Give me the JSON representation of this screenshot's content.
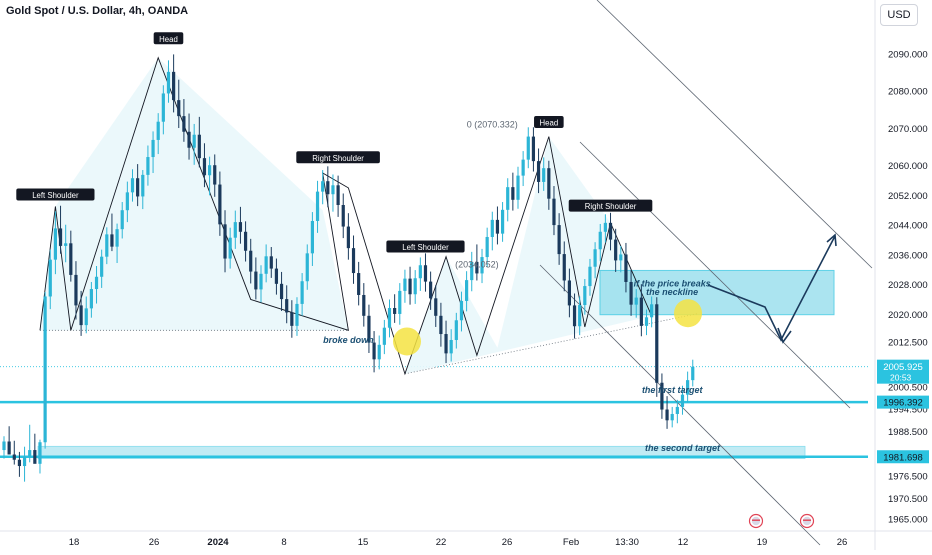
{
  "header": {
    "symbol_title": "Gold Spot / U.S. Dollar, 4h, OANDA",
    "currency_button": "USD"
  },
  "colors": {
    "bull": "#2cb5d6",
    "bear": "#1b3a5c",
    "band": "#2bc3e0",
    "zone_fill": "#8fdcec",
    "trend_line": "#131722",
    "highlight": "#f5e342",
    "annotation_text": "#1b4f72",
    "price_tag_bg": "#2bc3e0",
    "current_tag_bg": "#2bc3e0"
  },
  "chart_data": {
    "type": "candlestick",
    "y_axis": {
      "ticks": [
        2090,
        2080,
        2070,
        2060,
        2052,
        2044,
        2036,
        2028,
        2020,
        2012.5,
        2000.5,
        1994.5,
        1988.5,
        1976.5,
        1970.5,
        1965
      ],
      "tick_labels": [
        "2090.000",
        "2080.000",
        "2070.000",
        "2060.000",
        "2052.000",
        "2044.000",
        "2036.000",
        "2028.000",
        "2020.000",
        "2012.500",
        "2000.500",
        "1994.500",
        "1988.500",
        "1976.500",
        "1970.500",
        "1965.000"
      ],
      "range": [
        1962,
        2097
      ]
    },
    "x_axis": {
      "tick_labels": [
        "18",
        "26",
        "2024",
        "8",
        "15",
        "22",
        "26",
        "Feb",
        "13:30",
        "12",
        "19",
        "26"
      ],
      "bold_labels": [
        "2024"
      ]
    },
    "price_tags": [
      {
        "price": 2005.925,
        "label": "2005.925",
        "sublabel": "20:53",
        "kind": "current"
      },
      {
        "price": 1996.392,
        "label": "1996.392",
        "kind": "level"
      },
      {
        "price": 1981.698,
        "label": "1981.698",
        "kind": "level"
      }
    ],
    "horizontal_levels": [
      {
        "price": 1996.392,
        "style": "band"
      },
      {
        "price": 1981.698,
        "style": "band"
      }
    ],
    "pattern_labels": [
      {
        "text": "Left Shoulder",
        "bar": 10,
        "price": 2049
      },
      {
        "text": "Head",
        "bar": 32,
        "price": 2091
      },
      {
        "text": "Right Shoulder",
        "bar": 65,
        "price": 2059
      },
      {
        "text": "Left Shoulder",
        "bar": 82,
        "price": 2035
      },
      {
        "text": "Head",
        "bar": 106,
        "price": 2068.5
      },
      {
        "text": "Right Shoulder",
        "bar": 118,
        "price": 2046
      }
    ],
    "annotations": [
      {
        "text": "broke down",
        "bar": 67,
        "price": 2012.3
      },
      {
        "text": "if the price breaks",
        "bar": 130,
        "price": 2027.5
      },
      {
        "text": "the neckline",
        "bar": 130,
        "price": 2025.2
      },
      {
        "text": "the first target",
        "bar": 130,
        "price": 1998.8
      },
      {
        "text": "the second target",
        "bar": 132,
        "price": 1983.3
      },
      {
        "text": "(2034.052)",
        "bar": 92,
        "price": 2032.6
      },
      {
        "text": "0 (2070.332)",
        "bar": 95,
        "price": 2070.3
      }
    ],
    "candles": [
      {
        "o": 1983.5,
        "h": 1987.2,
        "l": 1981.2,
        "c": 1985.8
      },
      {
        "o": 1985.8,
        "h": 1989.9,
        "l": 1982.7,
        "c": 1982.3
      },
      {
        "o": 1982.3,
        "h": 1986.0,
        "l": 1979.6,
        "c": 1980.9
      },
      {
        "o": 1980.9,
        "h": 1983.0,
        "l": 1976.3,
        "c": 1979.2
      },
      {
        "o": 1979.2,
        "h": 1984.4,
        "l": 1975.0,
        "c": 1981.7
      },
      {
        "o": 1981.7,
        "h": 1990.3,
        "l": 1980.2,
        "c": 1983.5
      },
      {
        "o": 1983.5,
        "h": 1987.9,
        "l": 1980.4,
        "c": 1979.8
      },
      {
        "o": 1979.8,
        "h": 1986.3,
        "l": 1977.2,
        "c": 1985.6
      },
      {
        "o": 1985.6,
        "h": 2026.0,
        "l": 1983.9,
        "c": 2024.8
      },
      {
        "o": 2024.8,
        "h": 2037.4,
        "l": 2021.4,
        "c": 2034.7
      },
      {
        "o": 2034.7,
        "h": 2047.7,
        "l": 2030.8,
        "c": 2043.1
      },
      {
        "o": 2043.1,
        "h": 2049.2,
        "l": 2036.3,
        "c": 2038.4
      },
      {
        "o": 2038.4,
        "h": 2044.1,
        "l": 2034.0,
        "c": 2039.1
      },
      {
        "o": 2039.1,
        "h": 2042.5,
        "l": 2028.8,
        "c": 2030.6
      },
      {
        "o": 2030.6,
        "h": 2034.3,
        "l": 2018.6,
        "c": 2022.4
      },
      {
        "o": 2022.4,
        "h": 2026.3,
        "l": 2014.2,
        "c": 2017.1
      },
      {
        "o": 2017.1,
        "h": 2024.8,
        "l": 2014.9,
        "c": 2021.6
      },
      {
        "o": 2021.6,
        "h": 2028.7,
        "l": 2019.1,
        "c": 2026.8
      },
      {
        "o": 2026.8,
        "h": 2033.0,
        "l": 2022.9,
        "c": 2030.1
      },
      {
        "o": 2030.1,
        "h": 2037.4,
        "l": 2027.1,
        "c": 2035.5
      },
      {
        "o": 2035.5,
        "h": 2043.4,
        "l": 2033.5,
        "c": 2041.5
      },
      {
        "o": 2041.5,
        "h": 2047.1,
        "l": 2037.0,
        "c": 2038.2
      },
      {
        "o": 2038.2,
        "h": 2044.4,
        "l": 2033.8,
        "c": 2042.9
      },
      {
        "o": 2042.9,
        "h": 2050.2,
        "l": 2040.4,
        "c": 2048.0
      },
      {
        "o": 2048.0,
        "h": 2055.7,
        "l": 2044.8,
        "c": 2052.8
      },
      {
        "o": 2052.8,
        "h": 2059.0,
        "l": 2050.3,
        "c": 2056.6
      },
      {
        "o": 2056.6,
        "h": 2060.4,
        "l": 2049.1,
        "c": 2051.7
      },
      {
        "o": 2051.7,
        "h": 2058.8,
        "l": 2048.3,
        "c": 2057.5
      },
      {
        "o": 2057.5,
        "h": 2065.4,
        "l": 2054.6,
        "c": 2062.3
      },
      {
        "o": 2062.3,
        "h": 2069.2,
        "l": 2058.0,
        "c": 2066.9
      },
      {
        "o": 2066.9,
        "h": 2074.1,
        "l": 2063.1,
        "c": 2071.8
      },
      {
        "o": 2071.8,
        "h": 2081.6,
        "l": 2068.4,
        "c": 2079.4
      },
      {
        "o": 2079.4,
        "h": 2088.3,
        "l": 2076.9,
        "c": 2085.2
      },
      {
        "o": 2085.2,
        "h": 2089.9,
        "l": 2074.3,
        "c": 2077.6
      },
      {
        "o": 2077.6,
        "h": 2083.1,
        "l": 2070.1,
        "c": 2073.3
      },
      {
        "o": 2073.3,
        "h": 2077.9,
        "l": 2066.4,
        "c": 2069.1
      },
      {
        "o": 2069.1,
        "h": 2074.0,
        "l": 2061.6,
        "c": 2064.8
      },
      {
        "o": 2064.8,
        "h": 2071.2,
        "l": 2060.2,
        "c": 2068.3
      },
      {
        "o": 2068.3,
        "h": 2073.1,
        "l": 2059.5,
        "c": 2062.0
      },
      {
        "o": 2062.0,
        "h": 2066.0,
        "l": 2054.2,
        "c": 2057.4
      },
      {
        "o": 2057.4,
        "h": 2062.4,
        "l": 2052.0,
        "c": 2060.1
      },
      {
        "o": 2060.1,
        "h": 2063.0,
        "l": 2051.6,
        "c": 2054.9
      },
      {
        "o": 2054.9,
        "h": 2058.4,
        "l": 2041.1,
        "c": 2044.2
      },
      {
        "o": 2044.2,
        "h": 2048.0,
        "l": 2031.3,
        "c": 2035.0
      },
      {
        "o": 2035.0,
        "h": 2043.3,
        "l": 2032.3,
        "c": 2040.6
      },
      {
        "o": 2040.6,
        "h": 2047.9,
        "l": 2037.6,
        "c": 2044.8
      },
      {
        "o": 2044.8,
        "h": 2048.9,
        "l": 2039.0,
        "c": 2042.2
      },
      {
        "o": 2042.2,
        "h": 2045.0,
        "l": 2034.2,
        "c": 2037.1
      },
      {
        "o": 2037.1,
        "h": 2040.3,
        "l": 2028.3,
        "c": 2031.5
      },
      {
        "o": 2031.5,
        "h": 2035.3,
        "l": 2024.0,
        "c": 2026.7
      },
      {
        "o": 2026.7,
        "h": 2033.2,
        "l": 2023.2,
        "c": 2030.9
      },
      {
        "o": 2030.9,
        "h": 2038.8,
        "l": 2028.6,
        "c": 2035.6
      },
      {
        "o": 2035.6,
        "h": 2038.1,
        "l": 2029.8,
        "c": 2032.3
      },
      {
        "o": 2032.3,
        "h": 2035.0,
        "l": 2025.3,
        "c": 2028.2
      },
      {
        "o": 2028.2,
        "h": 2031.4,
        "l": 2020.9,
        "c": 2024.1
      },
      {
        "o": 2024.1,
        "h": 2027.8,
        "l": 2017.6,
        "c": 2020.5
      },
      {
        "o": 2020.5,
        "h": 2023.8,
        "l": 2013.7,
        "c": 2016.9
      },
      {
        "o": 2016.9,
        "h": 2024.6,
        "l": 2014.2,
        "c": 2022.8
      },
      {
        "o": 2022.8,
        "h": 2031.1,
        "l": 2019.6,
        "c": 2028.9
      },
      {
        "o": 2028.9,
        "h": 2038.8,
        "l": 2026.6,
        "c": 2036.4
      },
      {
        "o": 2036.4,
        "h": 2047.5,
        "l": 2033.0,
        "c": 2045.1
      },
      {
        "o": 2045.1,
        "h": 2055.9,
        "l": 2041.9,
        "c": 2053.0
      },
      {
        "o": 2053.0,
        "h": 2058.8,
        "l": 2049.6,
        "c": 2055.8
      },
      {
        "o": 2055.8,
        "h": 2059.8,
        "l": 2048.8,
        "c": 2052.3
      },
      {
        "o": 2052.3,
        "h": 2057.6,
        "l": 2047.6,
        "c": 2054.7
      },
      {
        "o": 2054.7,
        "h": 2057.3,
        "l": 2046.2,
        "c": 2049.4
      },
      {
        "o": 2049.4,
        "h": 2052.5,
        "l": 2040.5,
        "c": 2043.6
      },
      {
        "o": 2043.6,
        "h": 2047.2,
        "l": 2034.7,
        "c": 2037.8
      },
      {
        "o": 2037.8,
        "h": 2041.2,
        "l": 2028.2,
        "c": 2031.1
      },
      {
        "o": 2031.1,
        "h": 2034.1,
        "l": 2022.4,
        "c": 2025.2
      },
      {
        "o": 2025.2,
        "h": 2028.4,
        "l": 2016.7,
        "c": 2019.6
      },
      {
        "o": 2019.6,
        "h": 2022.6,
        "l": 2009.6,
        "c": 2012.4
      },
      {
        "o": 2012.4,
        "h": 2015.5,
        "l": 2004.4,
        "c": 2007.9
      },
      {
        "o": 2007.9,
        "h": 2014.3,
        "l": 2005.2,
        "c": 2011.8
      },
      {
        "o": 2011.8,
        "h": 2018.5,
        "l": 2009.3,
        "c": 2016.4
      },
      {
        "o": 2016.4,
        "h": 2024.0,
        "l": 2013.8,
        "c": 2021.7
      },
      {
        "o": 2021.7,
        "h": 2025.4,
        "l": 2017.7,
        "c": 2020.1
      },
      {
        "o": 2020.1,
        "h": 2028.4,
        "l": 2017.2,
        "c": 2026.3
      },
      {
        "o": 2026.3,
        "h": 2032.0,
        "l": 2023.1,
        "c": 2029.6
      },
      {
        "o": 2029.6,
        "h": 2032.8,
        "l": 2022.6,
        "c": 2025.4
      },
      {
        "o": 2025.4,
        "h": 2031.9,
        "l": 2022.8,
        "c": 2029.7
      },
      {
        "o": 2029.7,
        "h": 2035.3,
        "l": 2026.3,
        "c": 2033.2
      },
      {
        "o": 2033.2,
        "h": 2036.4,
        "l": 2026.1,
        "c": 2028.8
      },
      {
        "o": 2028.8,
        "h": 2031.5,
        "l": 2021.2,
        "c": 2024.3
      },
      {
        "o": 2024.3,
        "h": 2027.9,
        "l": 2016.6,
        "c": 2019.6
      },
      {
        "o": 2019.6,
        "h": 2023.1,
        "l": 2011.3,
        "c": 2014.7
      },
      {
        "o": 2014.7,
        "h": 2018.3,
        "l": 2006.9,
        "c": 2009.5
      },
      {
        "o": 2009.5,
        "h": 2016.0,
        "l": 2007.3,
        "c": 2013.1
      },
      {
        "o": 2013.1,
        "h": 2020.4,
        "l": 2010.8,
        "c": 2018.4
      },
      {
        "o": 2018.4,
        "h": 2026.1,
        "l": 2015.4,
        "c": 2023.6
      },
      {
        "o": 2023.6,
        "h": 2031.6,
        "l": 2020.8,
        "c": 2029.2
      },
      {
        "o": 2029.2,
        "h": 2036.8,
        "l": 2026.2,
        "c": 2034.1
      },
      {
        "o": 2034.1,
        "h": 2038.8,
        "l": 2029.1,
        "c": 2031.0
      },
      {
        "o": 2031.0,
        "h": 2037.6,
        "l": 2028.4,
        "c": 2035.4
      },
      {
        "o": 2035.4,
        "h": 2043.3,
        "l": 2032.7,
        "c": 2040.8
      },
      {
        "o": 2040.8,
        "h": 2047.6,
        "l": 2037.2,
        "c": 2045.4
      },
      {
        "o": 2045.4,
        "h": 2049.0,
        "l": 2038.8,
        "c": 2041.7
      },
      {
        "o": 2041.7,
        "h": 2050.2,
        "l": 2039.5,
        "c": 2048.1
      },
      {
        "o": 2048.1,
        "h": 2056.6,
        "l": 2045.0,
        "c": 2054.2
      },
      {
        "o": 2054.2,
        "h": 2058.1,
        "l": 2047.9,
        "c": 2050.8
      },
      {
        "o": 2050.8,
        "h": 2059.7,
        "l": 2048.4,
        "c": 2057.3
      },
      {
        "o": 2057.3,
        "h": 2063.9,
        "l": 2054.5,
        "c": 2061.6
      },
      {
        "o": 2061.6,
        "h": 2070.3,
        "l": 2059.3,
        "c": 2067.8
      },
      {
        "o": 2067.8,
        "h": 2070.3,
        "l": 2058.4,
        "c": 2061.2
      },
      {
        "o": 2061.2,
        "h": 2064.6,
        "l": 2052.6,
        "c": 2055.6
      },
      {
        "o": 2055.6,
        "h": 2062.2,
        "l": 2053.2,
        "c": 2059.3
      },
      {
        "o": 2059.3,
        "h": 2061.3,
        "l": 2048.1,
        "c": 2051.1
      },
      {
        "o": 2051.1,
        "h": 2054.5,
        "l": 2041.3,
        "c": 2044.0
      },
      {
        "o": 2044.0,
        "h": 2047.2,
        "l": 2033.3,
        "c": 2036.2
      },
      {
        "o": 2036.2,
        "h": 2039.6,
        "l": 2026.2,
        "c": 2029.1
      },
      {
        "o": 2029.1,
        "h": 2032.3,
        "l": 2019.2,
        "c": 2022.4
      },
      {
        "o": 2022.4,
        "h": 2025.6,
        "l": 2013.5,
        "c": 2016.8
      },
      {
        "o": 2016.8,
        "h": 2024.8,
        "l": 2014.4,
        "c": 2022.5
      },
      {
        "o": 2022.5,
        "h": 2029.5,
        "l": 2019.9,
        "c": 2027.6
      },
      {
        "o": 2027.6,
        "h": 2034.9,
        "l": 2025.0,
        "c": 2032.8
      },
      {
        "o": 2032.8,
        "h": 2039.4,
        "l": 2029.7,
        "c": 2037.5
      },
      {
        "o": 2037.5,
        "h": 2044.3,
        "l": 2034.3,
        "c": 2042.2
      },
      {
        "o": 2042.2,
        "h": 2046.9,
        "l": 2039.3,
        "c": 2044.6
      },
      {
        "o": 2044.6,
        "h": 2047.3,
        "l": 2037.2,
        "c": 2040.1
      },
      {
        "o": 2040.1,
        "h": 2043.0,
        "l": 2031.4,
        "c": 2034.5
      },
      {
        "o": 2034.5,
        "h": 2038.4,
        "l": 2031.3,
        "c": 2036.1
      },
      {
        "o": 2036.1,
        "h": 2039.2,
        "l": 2025.9,
        "c": 2028.7
      },
      {
        "o": 2028.7,
        "h": 2031.9,
        "l": 2019.6,
        "c": 2022.6
      },
      {
        "o": 2022.6,
        "h": 2026.8,
        "l": 2019.1,
        "c": 2024.5
      },
      {
        "o": 2024.5,
        "h": 2028.1,
        "l": 2014.1,
        "c": 2016.9
      },
      {
        "o": 2016.9,
        "h": 2021.3,
        "l": 2014.4,
        "c": 2019.2
      },
      {
        "o": 2019.2,
        "h": 2024.8,
        "l": 2016.5,
        "c": 2022.7
      },
      {
        "o": 2022.7,
        "h": 2024.6,
        "l": 1997.8,
        "c": 2001.6
      },
      {
        "o": 2001.6,
        "h": 2004.1,
        "l": 1991.9,
        "c": 1994.4
      },
      {
        "o": 1994.4,
        "h": 1998.0,
        "l": 1989.2,
        "c": 1991.5
      },
      {
        "o": 1991.5,
        "h": 1995.1,
        "l": 1989.6,
        "c": 1993.2
      },
      {
        "o": 1993.2,
        "h": 1997.0,
        "l": 1990.7,
        "c": 1995.1
      },
      {
        "o": 1995.1,
        "h": 2000.8,
        "l": 1993.0,
        "c": 1998.4
      },
      {
        "o": 1998.4,
        "h": 2004.6,
        "l": 1996.2,
        "c": 2002.3
      },
      {
        "o": 2002.3,
        "h": 2007.8,
        "l": 2000.6,
        "c": 2005.9
      }
    ]
  }
}
